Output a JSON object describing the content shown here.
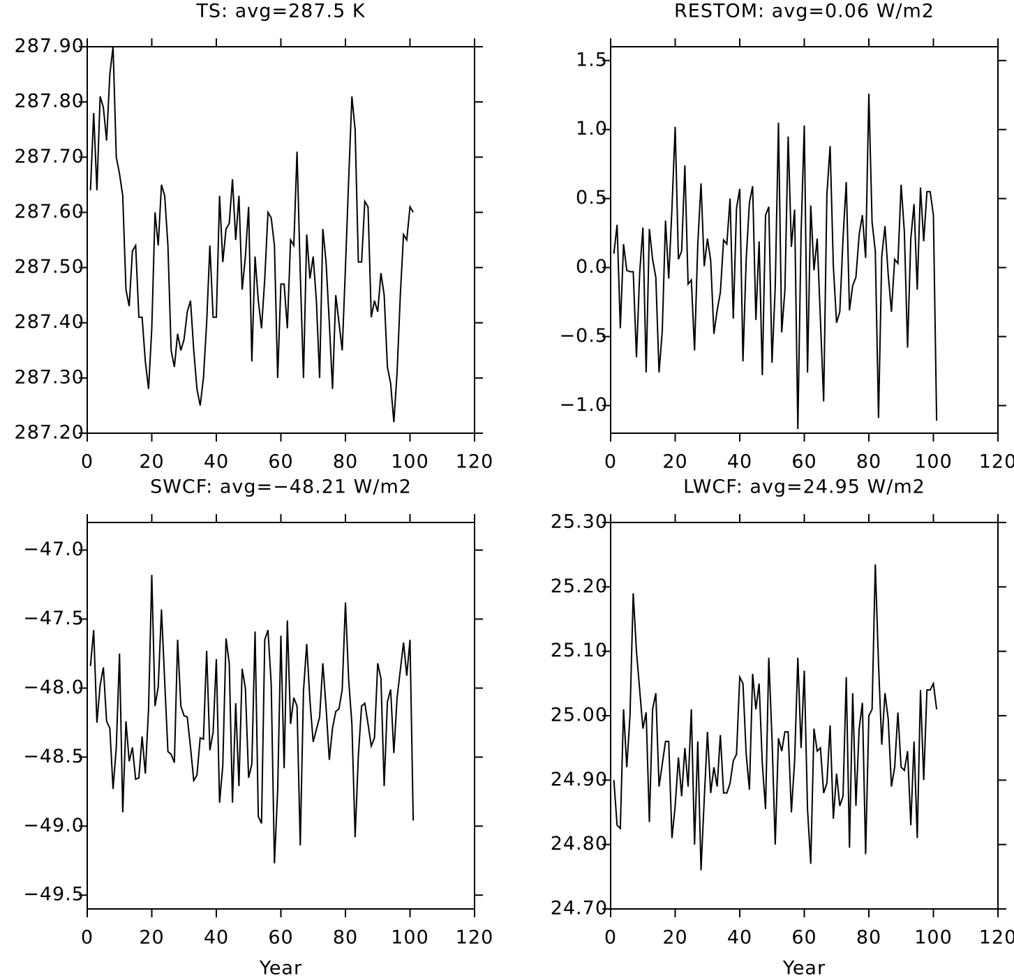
{
  "chart_data": [
    {
      "type": "line",
      "title": "TS: avg=287.5 K",
      "color": "#000000",
      "x": [
        1,
        2,
        3,
        4,
        5,
        6,
        7,
        8,
        9,
        10,
        11,
        12,
        13,
        14,
        15,
        16,
        17,
        18,
        19,
        20,
        21,
        22,
        23,
        24,
        25,
        26,
        27,
        28,
        29,
        30,
        31,
        32,
        33,
        34,
        35,
        36,
        37,
        38,
        39,
        40,
        41,
        42,
        43,
        44,
        45,
        46,
        47,
        48,
        49,
        50,
        51,
        52,
        53,
        54,
        55,
        56,
        57,
        58,
        59,
        60,
        61,
        62,
        63,
        64,
        65,
        66,
        67,
        68,
        69,
        70,
        71,
        72,
        73,
        74,
        75,
        76,
        77,
        78,
        79,
        80,
        81,
        82,
        83,
        84,
        85,
        86,
        87,
        88,
        89,
        90,
        91,
        92,
        93,
        94,
        95,
        96,
        97,
        98,
        99,
        100,
        101
      ],
      "values": [
        287.64,
        287.78,
        287.64,
        287.81,
        287.79,
        287.73,
        287.85,
        287.9,
        287.7,
        287.67,
        287.63,
        287.46,
        287.43,
        287.53,
        287.54,
        287.41,
        287.41,
        287.33,
        287.28,
        287.39,
        287.6,
        287.54,
        287.65,
        287.63,
        287.54,
        287.35,
        287.32,
        287.38,
        287.35,
        287.37,
        287.42,
        287.44,
        287.35,
        287.28,
        287.25,
        287.3,
        287.4,
        287.54,
        287.41,
        287.41,
        287.63,
        287.51,
        287.57,
        287.58,
        287.66,
        287.55,
        287.63,
        287.46,
        287.52,
        287.61,
        287.33,
        287.52,
        287.44,
        287.39,
        287.48,
        287.6,
        287.59,
        287.54,
        287.3,
        287.47,
        287.47,
        287.39,
        287.55,
        287.54,
        287.71,
        287.49,
        287.3,
        287.56,
        287.48,
        287.52,
        287.44,
        287.3,
        287.57,
        287.51,
        287.4,
        287.28,
        287.45,
        287.4,
        287.35,
        287.5,
        287.66,
        287.81,
        287.75,
        287.51,
        287.51,
        287.62,
        287.61,
        287.41,
        287.44,
        287.42,
        287.49,
        287.45,
        287.32,
        287.29,
        287.22,
        287.31,
        287.45,
        287.56,
        287.55,
        287.61,
        287.6
      ],
      "xlim": [
        0,
        120
      ],
      "xticks": [
        0,
        20,
        40,
        60,
        80,
        100,
        120
      ],
      "ylim": [
        287.2,
        287.9
      ],
      "yticks": [
        {
          "value": 287.2,
          "label": "287.20"
        },
        {
          "value": 287.3,
          "label": "287.30"
        },
        {
          "value": 287.4,
          "label": "287.40"
        },
        {
          "value": 287.5,
          "label": "287.50"
        },
        {
          "value": 287.6,
          "label": "287.60"
        },
        {
          "value": 287.7,
          "label": "287.70"
        },
        {
          "value": 287.8,
          "label": "287.80"
        },
        {
          "value": 287.9,
          "label": "287.90"
        }
      ]
    },
    {
      "type": "line",
      "title": "RESTOM: avg=0.06 W/m2",
      "color": "#000000",
      "x": [
        1,
        2,
        3,
        4,
        5,
        6,
        7,
        8,
        9,
        10,
        11,
        12,
        13,
        14,
        15,
        16,
        17,
        18,
        19,
        20,
        21,
        22,
        23,
        24,
        25,
        26,
        27,
        28,
        29,
        30,
        31,
        32,
        33,
        34,
        35,
        36,
        37,
        38,
        39,
        40,
        41,
        42,
        43,
        44,
        45,
        46,
        47,
        48,
        49,
        50,
        51,
        52,
        53,
        54,
        55,
        56,
        57,
        58,
        59,
        60,
        61,
        62,
        63,
        64,
        65,
        66,
        67,
        68,
        69,
        70,
        71,
        72,
        73,
        74,
        75,
        76,
        77,
        78,
        79,
        80,
        81,
        82,
        83,
        84,
        85,
        86,
        87,
        88,
        89,
        90,
        91,
        92,
        93,
        94,
        95,
        96,
        97,
        98,
        99,
        100,
        101
      ],
      "values": [
        0.1,
        0.31,
        -0.44,
        0.17,
        -0.02,
        -0.03,
        -0.03,
        -0.65,
        -0.04,
        0.29,
        -0.76,
        0.28,
        0.06,
        -0.07,
        -0.76,
        -0.46,
        0.34,
        -0.08,
        0.43,
        1.02,
        0.06,
        0.12,
        0.74,
        -0.12,
        -0.09,
        -0.6,
        0.17,
        0.61,
        0.01,
        0.21,
        0.05,
        -0.48,
        -0.31,
        -0.18,
        0.2,
        0.17,
        0.5,
        -0.37,
        0.43,
        0.57,
        -0.68,
        0.06,
        0.47,
        0.59,
        -0.38,
        0.19,
        -0.78,
        0.38,
        0.44,
        -0.69,
        -0.14,
        1.05,
        -0.47,
        -0.16,
        0.95,
        0.15,
        0.42,
        -1.17,
        0.24,
        1.03,
        -0.76,
        0.45,
        -0.02,
        0.21,
        -0.38,
        -0.97,
        0.53,
        0.88,
        0.01,
        -0.4,
        -0.32,
        0.21,
        0.62,
        -0.31,
        -0.13,
        -0.07,
        0.24,
        0.38,
        0.07,
        1.26,
        0.33,
        0.12,
        -1.09,
        0.08,
        0.3,
        -0.05,
        -0.32,
        0.06,
        0.03,
        0.6,
        0.26,
        -0.58,
        0.21,
        0.46,
        -0.16,
        0.58,
        0.19,
        0.55,
        0.55,
        0.38,
        -1.11
      ],
      "xlim": [
        0,
        120
      ],
      "xticks": [
        0,
        20,
        40,
        60,
        80,
        100,
        120
      ],
      "ylim": [
        -1.2,
        1.6
      ],
      "yticks": [
        {
          "value": -1.0,
          "label": "−1.0"
        },
        {
          "value": -0.5,
          "label": "−0.5"
        },
        {
          "value": 0,
          "label": "0.0"
        },
        0.5,
        {
          "value": 1.0,
          "label": "1.0"
        },
        1.5
      ]
    },
    {
      "type": "line",
      "title": "SWCF: avg=−48.21 W/m2",
      "x_label": "Year",
      "color": "#000000",
      "x": [
        1,
        2,
        3,
        4,
        5,
        6,
        7,
        8,
        9,
        10,
        11,
        12,
        13,
        14,
        15,
        16,
        17,
        18,
        19,
        20,
        21,
        22,
        23,
        24,
        25,
        26,
        27,
        28,
        29,
        30,
        31,
        32,
        33,
        34,
        35,
        36,
        37,
        38,
        39,
        40,
        41,
        42,
        43,
        44,
        45,
        46,
        47,
        48,
        49,
        50,
        51,
        52,
        53,
        54,
        55,
        56,
        57,
        58,
        59,
        60,
        61,
        62,
        63,
        64,
        65,
        66,
        67,
        68,
        69,
        70,
        71,
        72,
        73,
        74,
        75,
        76,
        77,
        78,
        79,
        80,
        81,
        82,
        83,
        84,
        85,
        86,
        87,
        88,
        89,
        90,
        91,
        92,
        93,
        94,
        95,
        96,
        97,
        98,
        99,
        100,
        101
      ],
      "values": [
        -47.84,
        -47.58,
        -48.25,
        -47.98,
        -47.85,
        -48.24,
        -48.29,
        -48.73,
        -48.43,
        -47.75,
        -48.9,
        -48.24,
        -48.53,
        -48.43,
        -48.66,
        -48.65,
        -48.35,
        -48.62,
        -48.15,
        -47.18,
        -48.13,
        -47.99,
        -47.43,
        -47.95,
        -48.46,
        -48.48,
        -48.54,
        -47.65,
        -48.13,
        -48.2,
        -48.21,
        -48.43,
        -48.67,
        -48.63,
        -48.36,
        -48.37,
        -47.73,
        -48.45,
        -48.32,
        -47.79,
        -48.83,
        -48.56,
        -47.64,
        -47.82,
        -48.83,
        -48.11,
        -48.71,
        -47.86,
        -48.0,
        -48.65,
        -48.55,
        -47.59,
        -48.93,
        -48.98,
        -47.65,
        -47.58,
        -47.97,
        -49.27,
        -48.74,
        -47.62,
        -48.58,
        -47.51,
        -48.26,
        -48.07,
        -48.13,
        -49.14,
        -48.02,
        -47.68,
        -48.09,
        -48.39,
        -48.3,
        -48.21,
        -47.82,
        -48.14,
        -48.52,
        -48.29,
        -48.17,
        -48.15,
        -48.01,
        -47.38,
        -47.94,
        -48.26,
        -49.08,
        -48.49,
        -48.13,
        -48.11,
        -48.26,
        -48.42,
        -48.36,
        -47.82,
        -47.93,
        -48.71,
        -48.1,
        -48.01,
        -48.47,
        -48.07,
        -47.87,
        -47.67,
        -47.91,
        -47.65,
        -48.96
      ],
      "xlim": [
        0,
        120
      ],
      "xticks": [
        0,
        20,
        40,
        60,
        80,
        100,
        120
      ],
      "ylim": [
        -49.6,
        -46.8
      ],
      "yticks": [
        {
          "value": -49.5,
          "label": "−49.5"
        },
        {
          "value": -49.0,
          "label": "−49.0"
        },
        {
          "value": -48.5,
          "label": "−48.5"
        },
        {
          "value": -48.0,
          "label": "−48.0"
        },
        {
          "value": -47.5,
          "label": "−47.5"
        },
        {
          "value": -47.0,
          "label": "−47.0"
        }
      ]
    },
    {
      "type": "line",
      "title": "LWCF: avg=24.95 W/m2",
      "x_label": "Year",
      "color": "#000000",
      "x": [
        1,
        2,
        3,
        4,
        5,
        6,
        7,
        8,
        9,
        10,
        11,
        12,
        13,
        14,
        15,
        16,
        17,
        18,
        19,
        20,
        21,
        22,
        23,
        24,
        25,
        26,
        27,
        28,
        29,
        30,
        31,
        32,
        33,
        34,
        35,
        36,
        37,
        38,
        39,
        40,
        41,
        42,
        43,
        44,
        45,
        46,
        47,
        48,
        49,
        50,
        51,
        52,
        53,
        54,
        55,
        56,
        57,
        58,
        59,
        60,
        61,
        62,
        63,
        64,
        65,
        66,
        67,
        68,
        69,
        70,
        71,
        72,
        73,
        74,
        75,
        76,
        77,
        78,
        79,
        80,
        81,
        82,
        83,
        84,
        85,
        86,
        87,
        88,
        89,
        90,
        91,
        92,
        93,
        94,
        95,
        96,
        97,
        98,
        99,
        100,
        101
      ],
      "values": [
        24.9,
        24.83,
        24.825,
        25.01,
        24.92,
        25.0,
        25.19,
        25.1,
        25.04,
        24.98,
        25.005,
        24.835,
        25.01,
        25.035,
        24.89,
        24.925,
        24.96,
        24.96,
        24.81,
        24.86,
        24.935,
        24.875,
        24.95,
        24.89,
        25.01,
        24.8,
        24.96,
        24.76,
        24.87,
        24.975,
        24.88,
        24.92,
        24.89,
        24.97,
        24.88,
        24.88,
        24.895,
        24.93,
        24.94,
        25.06,
        25.05,
        24.94,
        24.885,
        25.065,
        25.01,
        25.05,
        24.925,
        24.855,
        25.09,
        24.965,
        24.8,
        24.965,
        24.945,
        24.975,
        24.975,
        24.85,
        24.93,
        25.09,
        24.95,
        25.07,
        24.855,
        24.77,
        24.98,
        24.945,
        24.95,
        24.88,
        24.895,
        24.985,
        24.84,
        24.91,
        24.86,
        24.875,
        25.06,
        24.795,
        25.035,
        24.86,
        24.98,
        25.02,
        24.785,
        25.0,
        25.01,
        25.235,
        25.08,
        24.955,
        25.035,
        24.995,
        24.89,
        24.92,
        25.005,
        24.92,
        24.915,
        24.945,
        24.83,
        24.96,
        24.81,
        25.04,
        24.9,
        25.04,
        25.04,
        25.05,
        25.01
      ],
      "xlim": [
        0,
        120
      ],
      "xticks": [
        0,
        20,
        40,
        60,
        80,
        100,
        120
      ],
      "ylim": [
        24.7,
        25.3
      ],
      "yticks": [
        {
          "value": 24.7,
          "label": "24.70"
        },
        {
          "value": 24.8,
          "label": "24.80"
        },
        {
          "value": 24.9,
          "label": "24.90"
        },
        {
          "value": 25.0,
          "label": "25.00"
        },
        {
          "value": 25.1,
          "label": "25.10"
        },
        {
          "value": 25.2,
          "label": "25.20"
        },
        {
          "value": 25.3,
          "label": "25.30"
        }
      ]
    }
  ]
}
